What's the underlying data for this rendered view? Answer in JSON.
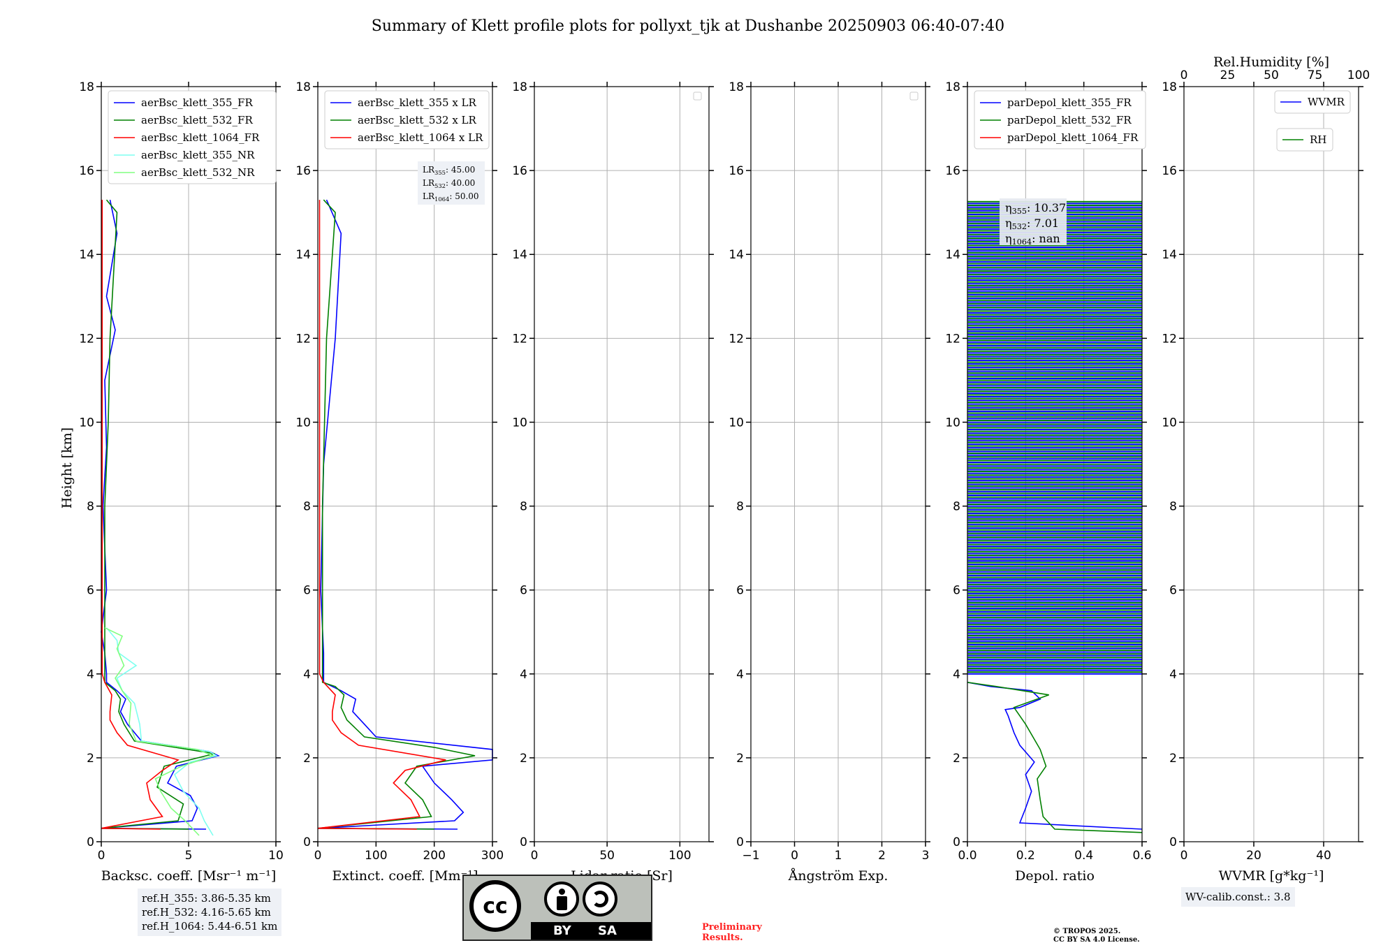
{
  "title": "Summary of Klett profile plots for pollyxt_tjk at Dushanbe 20250903 06:40-07:40",
  "ylabel": "Height [km]",
  "yticks": [
    "0",
    "2",
    "4",
    "6",
    "8",
    "10",
    "12",
    "14",
    "16",
    "18"
  ],
  "colors": {
    "blue": "#0000ff",
    "green": "#008000",
    "red": "#ff0000",
    "cyan": "#7ffff0",
    "lightgreen": "#80ff80",
    "grid": "#b0b0b0"
  },
  "chart_data": [
    {
      "type": "line",
      "id": "bsc",
      "xlabel": "Backsc. coeff. [Msr⁻¹ m⁻¹]",
      "xlim": [
        0,
        10
      ],
      "xticks": [
        "0",
        "5",
        "10"
      ],
      "ylim": [
        0,
        18
      ],
      "legend": [
        "aerBsc_klett_355_FR",
        "aerBsc_klett_532_FR",
        "aerBsc_klett_1064_FR",
        "aerBsc_klett_355_NR",
        "aerBsc_klett_532_NR"
      ],
      "series": [
        {
          "name": "aerBsc_klett_355_FR",
          "color": "blue",
          "points": [
            [
              6.0,
              0.3
            ],
            [
              0.0,
              0.32
            ],
            [
              5.2,
              0.5
            ],
            [
              5.5,
              0.8
            ],
            [
              5.1,
              1.1
            ],
            [
              3.8,
              1.4
            ],
            [
              4.3,
              1.8
            ],
            [
              6.7,
              2.05
            ],
            [
              6.2,
              2.15
            ],
            [
              2.3,
              2.4
            ],
            [
              1.5,
              2.8
            ],
            [
              1.1,
              3.1
            ],
            [
              1.4,
              3.4
            ],
            [
              0.9,
              3.6
            ],
            [
              0.3,
              3.8
            ],
            [
              0.3,
              4.0
            ],
            [
              0.2,
              4.5
            ],
            [
              0.0,
              5.0
            ],
            [
              0.3,
              6.0
            ],
            [
              0.1,
              8.0
            ],
            [
              0.3,
              9.4
            ],
            [
              0.2,
              11.0
            ],
            [
              0.8,
              12.2
            ],
            [
              0.3,
              13.0
            ],
            [
              0.9,
              14.5
            ],
            [
              0.5,
              15.3
            ]
          ]
        },
        {
          "name": "aerBsc_klett_532_FR",
          "color": "green",
          "points": [
            [
              5.0,
              0.3
            ],
            [
              0.0,
              0.32
            ],
            [
              4.4,
              0.5
            ],
            [
              4.7,
              0.9
            ],
            [
              3.2,
              1.3
            ],
            [
              3.6,
              1.8
            ],
            [
              6.5,
              2.1
            ],
            [
              5.0,
              2.2
            ],
            [
              1.9,
              2.4
            ],
            [
              1.3,
              2.8
            ],
            [
              1.0,
              3.1
            ],
            [
              1.1,
              3.4
            ],
            [
              0.8,
              3.6
            ],
            [
              0.2,
              3.8
            ],
            [
              0.2,
              4.5
            ],
            [
              0.2,
              6.0
            ],
            [
              0.2,
              8.0
            ],
            [
              0.4,
              10.0
            ],
            [
              0.5,
              12.0
            ],
            [
              0.9,
              15.0
            ],
            [
              0.3,
              15.3
            ]
          ]
        },
        {
          "name": "aerBsc_klett_1064_FR",
          "color": "red",
          "points": [
            [
              3.4,
              0.3
            ],
            [
              0.0,
              0.32
            ],
            [
              3.5,
              0.6
            ],
            [
              2.8,
              1.0
            ],
            [
              2.6,
              1.4
            ],
            [
              3.5,
              1.7
            ],
            [
              4.4,
              1.95
            ],
            [
              1.5,
              2.3
            ],
            [
              0.9,
              2.6
            ],
            [
              0.5,
              2.9
            ],
            [
              0.5,
              3.1
            ],
            [
              0.6,
              3.5
            ],
            [
              0.2,
              3.8
            ],
            [
              0.05,
              4.0
            ],
            [
              0.05,
              15.3
            ]
          ]
        },
        {
          "name": "aerBsc_klett_355_NR",
          "color": "cyan",
          "points": [
            [
              6.4,
              0.15
            ],
            [
              5.9,
              0.5
            ],
            [
              5.6,
              0.8
            ],
            [
              4.7,
              1.2
            ],
            [
              4.2,
              1.6
            ],
            [
              5.1,
              1.9
            ],
            [
              6.6,
              2.05
            ],
            [
              6.2,
              2.15
            ],
            [
              2.3,
              2.4
            ],
            [
              2.2,
              2.8
            ],
            [
              1.9,
              3.3
            ],
            [
              1.2,
              3.6
            ],
            [
              0.9,
              3.9
            ],
            [
              2.0,
              4.2
            ],
            [
              1.0,
              4.5
            ],
            [
              0.9,
              4.8
            ],
            [
              0.3,
              5.1
            ]
          ]
        },
        {
          "name": "aerBsc_klett_532_NR",
          "color": "lightgreen",
          "points": [
            [
              5.6,
              0.15
            ],
            [
              4.8,
              0.5
            ],
            [
              4.0,
              0.8
            ],
            [
              3.4,
              1.2
            ],
            [
              3.1,
              1.5
            ],
            [
              4.6,
              1.8
            ],
            [
              6.4,
              2.05
            ],
            [
              5.5,
              2.2
            ],
            [
              2.0,
              2.4
            ],
            [
              1.6,
              2.8
            ],
            [
              1.7,
              3.3
            ],
            [
              1.2,
              3.6
            ],
            [
              0.8,
              3.9
            ],
            [
              1.3,
              4.2
            ],
            [
              0.9,
              4.6
            ],
            [
              1.2,
              4.9
            ],
            [
              0.2,
              5.1
            ]
          ]
        }
      ]
    },
    {
      "type": "line",
      "id": "ext",
      "xlabel": "Extinct. coeff. [Mm⁻¹]",
      "xlim": [
        0,
        300
      ],
      "xticks": [
        "0",
        "100",
        "200",
        "300"
      ],
      "ylim": [
        0,
        18
      ],
      "legend": [
        "aerBsc_klett_355 x LR",
        "aerBsc_klett_532 x LR",
        "aerBsc_klett_1064 x LR"
      ],
      "series": [
        {
          "name": "aerBsc_klett_355 x LR",
          "color": "blue",
          "points": [
            [
              240,
              0.3
            ],
            [
              0,
              0.32
            ],
            [
              235,
              0.5
            ],
            [
              250,
              0.7
            ],
            [
              230,
              1.0
            ],
            [
              200,
              1.4
            ],
            [
              180,
              1.8
            ],
            [
              300,
              1.95
            ],
            [
              300,
              2.2
            ],
            [
              100,
              2.5
            ],
            [
              80,
              2.8
            ],
            [
              60,
              3.1
            ],
            [
              65,
              3.4
            ],
            [
              40,
              3.6
            ],
            [
              10,
              3.8
            ],
            [
              10,
              4.5
            ],
            [
              5,
              6.0
            ],
            [
              10,
              9.0
            ],
            [
              30,
              12.0
            ],
            [
              40,
              14.5
            ],
            [
              15,
              15.3
            ]
          ]
        },
        {
          "name": "aerBsc_klett_532 x LR",
          "color": "green",
          "points": [
            [
              200,
              0.3
            ],
            [
              0,
              0.32
            ],
            [
              195,
              0.6
            ],
            [
              180,
              1.0
            ],
            [
              150,
              1.4
            ],
            [
              170,
              1.8
            ],
            [
              270,
              2.05
            ],
            [
              200,
              2.25
            ],
            [
              80,
              2.5
            ],
            [
              50,
              2.9
            ],
            [
              40,
              3.2
            ],
            [
              45,
              3.5
            ],
            [
              30,
              3.7
            ],
            [
              8,
              3.8
            ],
            [
              8,
              5.0
            ],
            [
              8,
              8.0
            ],
            [
              15,
              12.0
            ],
            [
              30,
              15.0
            ],
            [
              10,
              15.3
            ]
          ]
        },
        {
          "name": "aerBsc_klett_1064 x LR",
          "color": "red",
          "points": [
            [
              170,
              0.3
            ],
            [
              0,
              0.32
            ],
            [
              175,
              0.6
            ],
            [
              160,
              1.0
            ],
            [
              130,
              1.4
            ],
            [
              150,
              1.7
            ],
            [
              220,
              1.95
            ],
            [
              70,
              2.3
            ],
            [
              40,
              2.6
            ],
            [
              25,
              2.9
            ],
            [
              25,
              3.1
            ],
            [
              30,
              3.5
            ],
            [
              10,
              3.8
            ],
            [
              3,
              4.0
            ],
            [
              3,
              15.3
            ]
          ]
        }
      ],
      "annotation": {
        "lines": [
          [
            "LR",
            "355",
            ": 45.00"
          ],
          [
            "LR",
            "532",
            ": 40.00"
          ],
          [
            "LR",
            "1064",
            ": 50.00"
          ]
        ]
      }
    },
    {
      "type": "line",
      "id": "lr",
      "xlabel": "Lidar ratio [Sr]",
      "xlim": [
        0,
        120
      ],
      "xticks": [
        "0",
        "50",
        "100"
      ],
      "ylim": [
        0,
        18
      ],
      "series": []
    },
    {
      "type": "line",
      "id": "ae",
      "xlabel": "Ångström Exp.",
      "xlim": [
        -1,
        3
      ],
      "xticks": [
        "−1",
        "0",
        "1",
        "2",
        "3"
      ],
      "ylim": [
        0,
        18
      ],
      "series": []
    },
    {
      "type": "line",
      "id": "depol",
      "xlabel": "Depol. ratio",
      "xlim": [
        0,
        0.6
      ],
      "xticks": [
        "0.0",
        "0.2",
        "0.4",
        "0.6"
      ],
      "ylim": [
        0,
        18
      ],
      "legend": [
        "parDepol_klett_355_FR",
        "parDepol_klett_532_FR",
        "parDepol_klett_1064_FR"
      ],
      "series": [
        {
          "name": "parDepol_klett_355_FR",
          "color": "blue",
          "points": [
            [
              0.6,
              0.3
            ],
            [
              0.18,
              0.45
            ],
            [
              0.2,
              0.8
            ],
            [
              0.22,
              1.2
            ],
            [
              0.2,
              1.6
            ],
            [
              0.23,
              1.9
            ],
            [
              0.18,
              2.3
            ],
            [
              0.16,
              2.6
            ],
            [
              0.14,
              3.0
            ],
            [
              0.13,
              3.15
            ],
            [
              0.18,
              3.2
            ],
            [
              0.25,
              3.4
            ],
            [
              0.22,
              3.6
            ],
            [
              0.08,
              3.7
            ],
            [
              0.0,
              3.8
            ]
          ]
        },
        {
          "name": "parDepol_klett_532_FR",
          "color": "green",
          "points": [
            [
              0.6,
              0.22
            ],
            [
              0.3,
              0.3
            ],
            [
              0.26,
              0.6
            ],
            [
              0.25,
              1.0
            ],
            [
              0.24,
              1.5
            ],
            [
              0.27,
              1.8
            ],
            [
              0.25,
              2.2
            ],
            [
              0.2,
              2.8
            ],
            [
              0.16,
              3.2
            ],
            [
              0.24,
              3.4
            ],
            [
              0.28,
              3.5
            ],
            [
              0.1,
              3.7
            ],
            [
              0.0,
              3.8
            ]
          ]
        }
      ],
      "band": {
        "y_from": 4.0,
        "y_to": 15.3,
        "x_min": 0.0,
        "x_max": 0.6
      },
      "annotation": {
        "lines": [
          [
            "η",
            "355",
            ": 10.37"
          ],
          [
            "η",
            "532",
            ": 7.01"
          ],
          [
            "η",
            "1064",
            ": nan"
          ]
        ]
      }
    },
    {
      "type": "line",
      "id": "wv",
      "xlabel": "WVMR [g*kg⁻¹]",
      "xlim": [
        0,
        50
      ],
      "xticks": [
        "0",
        "20",
        "40"
      ],
      "top_label": "Rel.Humidity [%]",
      "top_xticks": [
        "0",
        "25",
        "50",
        "75",
        "100"
      ],
      "ylim": [
        0,
        18
      ],
      "legend": [
        "WVMR",
        "RH"
      ],
      "series": []
    }
  ],
  "notes": {
    "refh": [
      "ref.H_355: 3.86-5.35 km",
      "ref.H_532: 4.16-5.65 km",
      "ref.H_1064: 5.44-6.51 km"
    ],
    "wv_calib": "WV-calib.const.: 3.8",
    "preliminary": [
      "Preliminary",
      "Results."
    ],
    "copyright": [
      "© TROPOS 2025.",
      "CC BY SA 4.0 License."
    ],
    "cc_badge": {
      "left": "cc",
      "by": "BY",
      "sa": "SA"
    }
  }
}
